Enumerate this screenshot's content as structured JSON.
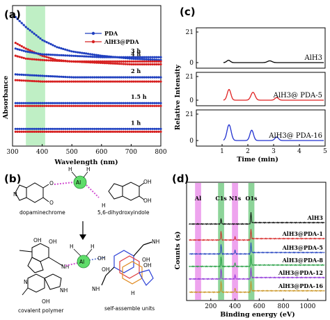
{
  "panel_labels": {
    "a": "(a)",
    "b": "(b)",
    "c": "(c)",
    "d": "(d)"
  },
  "colors": {
    "pda": "#1f3fbf",
    "alh3pda": "#d62020",
    "band_a": "#44cc55",
    "band_al": "#e05ae0",
    "band_c": "#2fb045",
    "band_n": "#e05ae0",
    "band_o": "#2fb045"
  },
  "chart_data": [
    {
      "panel": "a",
      "type": "line",
      "xlabel": "Wavelength (nm)",
      "ylabel": "Absorbance",
      "xlim": [
        300,
        800
      ],
      "xticks": [
        "300",
        "400",
        "500",
        "600",
        "700",
        "800"
      ],
      "x_highlight": [
        345,
        410
      ],
      "legend": [
        "PDA",
        "AlH3@PDA"
      ],
      "groups": [
        {
          "label": "4 h",
          "pda": [
            {
              "x": 310,
              "y": 1.2
            },
            {
              "x": 345,
              "y": 1.13
            },
            {
              "x": 400,
              "y": 1.04
            },
            {
              "x": 450,
              "y": 0.99
            },
            {
              "x": 500,
              "y": 0.96
            },
            {
              "x": 600,
              "y": 0.93
            },
            {
              "x": 700,
              "y": 0.91
            },
            {
              "x": 800,
              "y": 0.9
            }
          ],
          "alh3pda": [
            {
              "x": 310,
              "y": 1.02
            },
            {
              "x": 345,
              "y": 0.98
            },
            {
              "x": 400,
              "y": 0.93
            },
            {
              "x": 450,
              "y": 0.9
            },
            {
              "x": 500,
              "y": 0.89
            },
            {
              "x": 600,
              "y": 0.88
            },
            {
              "x": 700,
              "y": 0.87
            },
            {
              "x": 800,
              "y": 0.87
            }
          ]
        },
        {
          "label": "3 h",
          "pda": [
            {
              "x": 310,
              "y": 0.98
            },
            {
              "x": 345,
              "y": 0.96
            },
            {
              "x": 400,
              "y": 0.94
            },
            {
              "x": 500,
              "y": 0.93
            },
            {
              "x": 600,
              "y": 0.92
            },
            {
              "x": 700,
              "y": 0.92
            },
            {
              "x": 800,
              "y": 0.92
            }
          ],
          "alh3pda": [
            {
              "x": 310,
              "y": 0.93
            },
            {
              "x": 345,
              "y": 0.91
            },
            {
              "x": 400,
              "y": 0.9
            },
            {
              "x": 500,
              "y": 0.89
            },
            {
              "x": 600,
              "y": 0.89
            },
            {
              "x": 700,
              "y": 0.89
            },
            {
              "x": 800,
              "y": 0.89
            }
          ]
        },
        {
          "label": "2 h",
          "pda": [
            {
              "x": 310,
              "y": 0.8
            },
            {
              "x": 400,
              "y": 0.79
            },
            {
              "x": 500,
              "y": 0.78
            },
            {
              "x": 600,
              "y": 0.78
            },
            {
              "x": 700,
              "y": 0.78
            },
            {
              "x": 800,
              "y": 0.78
            }
          ],
          "alh3pda": [
            {
              "x": 310,
              "y": 0.76
            },
            {
              "x": 400,
              "y": 0.75
            },
            {
              "x": 500,
              "y": 0.75
            },
            {
              "x": 600,
              "y": 0.75
            },
            {
              "x": 700,
              "y": 0.75
            },
            {
              "x": 800,
              "y": 0.75
            }
          ]
        },
        {
          "label": "1.5 h",
          "pda": [
            {
              "x": 310,
              "y": 0.6
            },
            {
              "x": 400,
              "y": 0.6
            },
            {
              "x": 500,
              "y": 0.6
            },
            {
              "x": 600,
              "y": 0.6
            },
            {
              "x": 700,
              "y": 0.6
            },
            {
              "x": 800,
              "y": 0.6
            }
          ],
          "alh3pda": [
            {
              "x": 310,
              "y": 0.58
            },
            {
              "x": 400,
              "y": 0.58
            },
            {
              "x": 500,
              "y": 0.58
            },
            {
              "x": 600,
              "y": 0.58
            },
            {
              "x": 700,
              "y": 0.58
            },
            {
              "x": 800,
              "y": 0.58
            }
          ]
        },
        {
          "label": "1 h",
          "pda": [
            {
              "x": 310,
              "y": 0.42
            },
            {
              "x": 400,
              "y": 0.42
            },
            {
              "x": 500,
              "y": 0.42
            },
            {
              "x": 600,
              "y": 0.42
            },
            {
              "x": 700,
              "y": 0.42
            },
            {
              "x": 800,
              "y": 0.42
            }
          ],
          "alh3pda": [
            {
              "x": 310,
              "y": 0.4
            },
            {
              "x": 400,
              "y": 0.4
            },
            {
              "x": 500,
              "y": 0.4
            },
            {
              "x": 600,
              "y": 0.4
            },
            {
              "x": 700,
              "y": 0.4
            },
            {
              "x": 800,
              "y": 0.4
            }
          ]
        }
      ]
    },
    {
      "panel": "c",
      "type": "line",
      "xlabel": "Time (min)",
      "ylabel": "Relative Intensity",
      "xlim": [
        0,
        5
      ],
      "xticks": [
        "1",
        "2",
        "3",
        "4",
        "5"
      ],
      "yticks": [
        "0",
        "21"
      ],
      "subplots": [
        {
          "label": "AlH3",
          "ylim": [
            0,
            21
          ],
          "peaks": [
            {
              "x": 1.25,
              "h": 1.6,
              "w": 0.07
            },
            {
              "x": 2.85,
              "h": 1.2,
              "w": 0.09
            }
          ]
        },
        {
          "label": "AlH3@ PDA-5",
          "ylim": [
            0,
            21
          ],
          "peaks": [
            {
              "x": 1.27,
              "h": 9.5,
              "w": 0.07
            },
            {
              "x": 2.2,
              "h": 7.0,
              "w": 0.08
            },
            {
              "x": 3.12,
              "h": 2.3,
              "w": 0.07
            }
          ]
        },
        {
          "label": "AlH3@ PDA-16",
          "ylim": [
            0,
            21
          ],
          "peaks": [
            {
              "x": 1.27,
              "h": 12.5,
              "w": 0.08
            },
            {
              "x": 2.15,
              "h": 8.2,
              "w": 0.07
            },
            {
              "x": 3.12,
              "h": 2.8,
              "w": 0.07
            }
          ]
        }
      ]
    },
    {
      "panel": "d",
      "type": "line",
      "xlabel": "Binding energy (eV)",
      "ylabel": "Counts (s)",
      "xlim": [
        0,
        1150
      ],
      "xticks": [
        "200",
        "400",
        "600",
        "800",
        "1000"
      ],
      "bands": [
        {
          "label": "Al",
          "x": [
            70,
            120
          ],
          "color": "#e05ae0"
        },
        {
          "label": "C1s",
          "x": [
            260,
            310
          ],
          "color": "#2fb045"
        },
        {
          "label": "N1s",
          "x": [
            375,
            425
          ],
          "color": "#e05ae0"
        },
        {
          "label": "O1s",
          "x": [
            510,
            560
          ],
          "color": "#2fb045"
        }
      ],
      "series": [
        {
          "name": "AlH3",
          "color": "#000000",
          "peaks": [
            {
              "x": 285,
              "h": 1
            },
            {
              "x": 532,
              "h": 2.2
            }
          ]
        },
        {
          "name": "AlH3@PDA-1",
          "color": "#d62020",
          "peaks": [
            {
              "x": 285,
              "h": 1.6
            },
            {
              "x": 400,
              "h": 0.6
            },
            {
              "x": 532,
              "h": 2.0
            }
          ]
        },
        {
          "name": "AlH3@PDA-5",
          "color": "#1f3fbf",
          "peaks": [
            {
              "x": 285,
              "h": 1.8
            },
            {
              "x": 400,
              "h": 0.7
            },
            {
              "x": 532,
              "h": 2.0
            }
          ]
        },
        {
          "name": "AlH3@PDA-8",
          "color": "#1a9a3a",
          "peaks": [
            {
              "x": 285,
              "h": 1.9
            },
            {
              "x": 400,
              "h": 0.7
            },
            {
              "x": 532,
              "h": 2.0
            }
          ]
        },
        {
          "name": "AlH3@PDA-12",
          "color": "#8a2bd6",
          "peaks": [
            {
              "x": 285,
              "h": 2.0
            },
            {
              "x": 400,
              "h": 0.8
            },
            {
              "x": 532,
              "h": 2.0
            }
          ]
        },
        {
          "name": "AlH3@PDA-16",
          "color": "#c8901a",
          "peaks": [
            {
              "x": 285,
              "h": 2.1
            },
            {
              "x": 400,
              "h": 0.8
            },
            {
              "x": 532,
              "h": 2.0
            }
          ]
        }
      ]
    }
  ],
  "diagram_b": {
    "al": "Al",
    "h": "H",
    "nh": "NH",
    "h_n": "H",
    "n": "N",
    "oh": "OH",
    "o": "O",
    "nh2": "NH",
    "label_dopaminechrome": "dopaminechrome",
    "label_dhi": "5,6-dihydroxyindole",
    "label_covalent": "covalent  polymer",
    "label_selfassemble": "self-assemble units"
  }
}
